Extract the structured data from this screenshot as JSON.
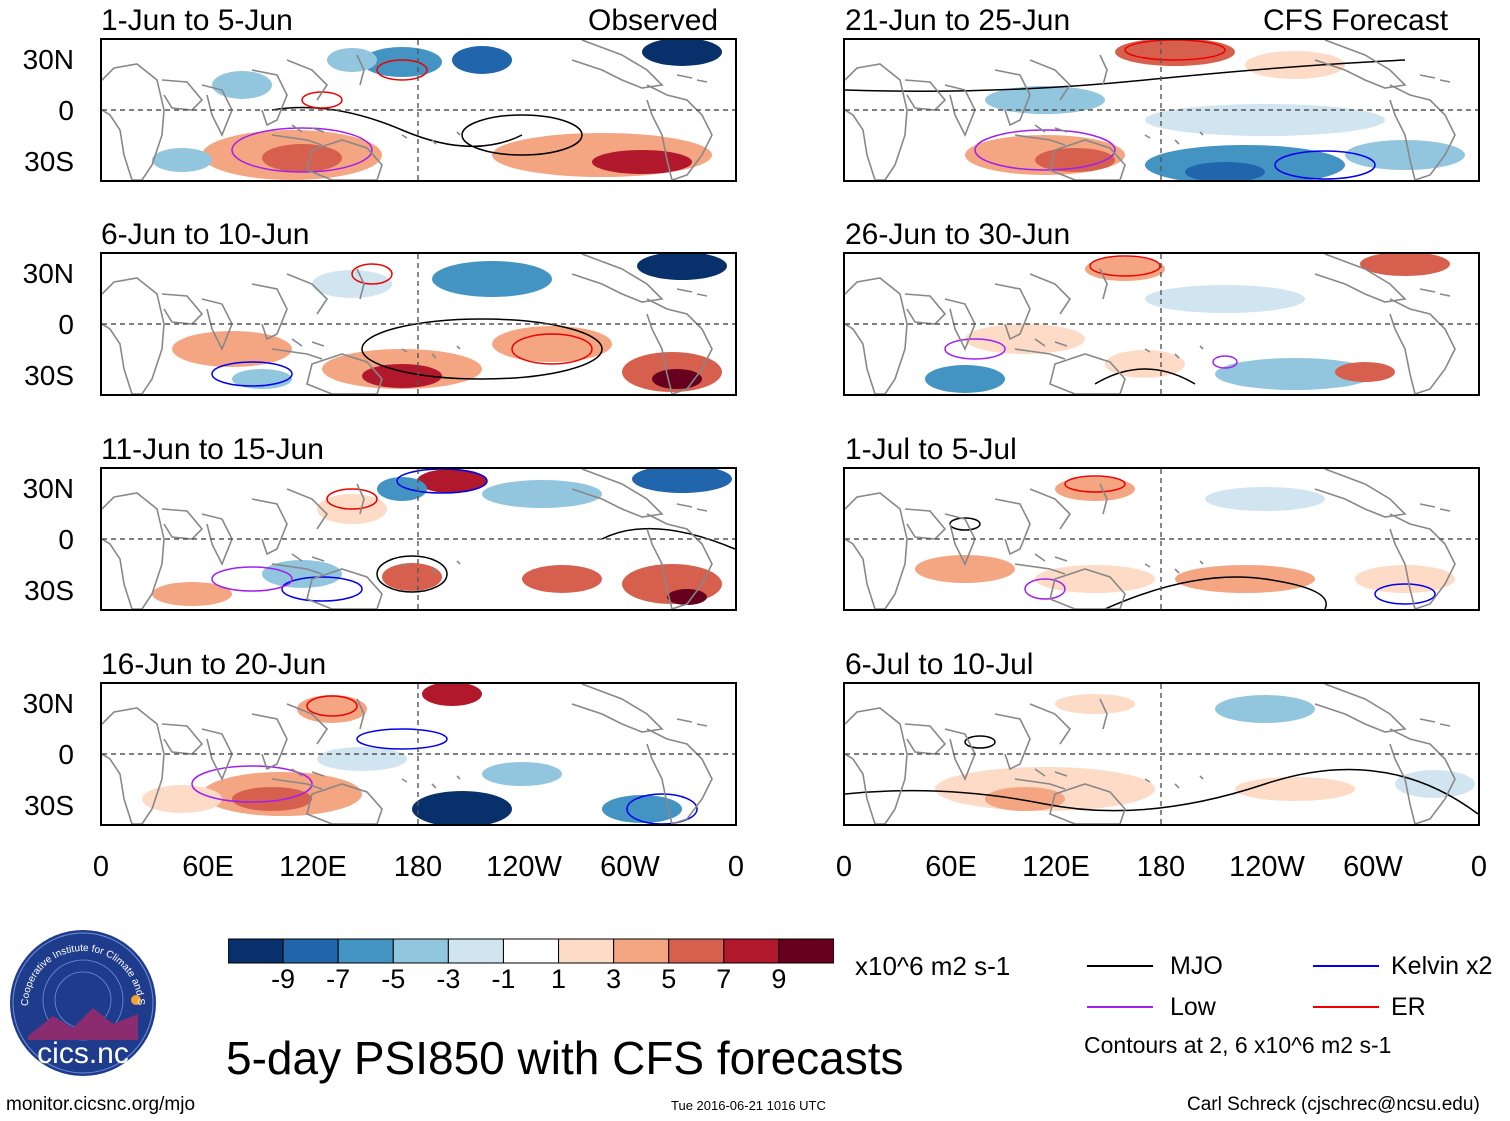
{
  "header": {
    "left_group_title": "Observed",
    "right_group_title": "CFS Forecast"
  },
  "panels_observed": [
    {
      "label": "1-Jun to 5-Jun"
    },
    {
      "label": "6-Jun to 10-Jun"
    },
    {
      "label": "11-Jun to 15-Jun"
    },
    {
      "label": "16-Jun to 20-Jun"
    }
  ],
  "panels_forecast": [
    {
      "label": "21-Jun to 25-Jun"
    },
    {
      "label": "26-Jun to 30-Jun"
    },
    {
      "label": "1-Jul to 5-Jul"
    },
    {
      "label": "6-Jul to 10-Jul"
    }
  ],
  "axes": {
    "y_ticks": [
      "30N",
      "0",
      "30S"
    ],
    "x_ticks": [
      "0",
      "60E",
      "120E",
      "180",
      "120W",
      "60W",
      "0"
    ]
  },
  "colorbar": {
    "ticks": [
      "-9",
      "-7",
      "-5",
      "-3",
      "-1",
      "1",
      "3",
      "5",
      "7",
      "9"
    ],
    "units": "x10^6 m2 s-1",
    "colors": [
      "#08306b",
      "#2166ac",
      "#4393c3",
      "#92c5de",
      "#d1e5f0",
      "#ffffff",
      "#fddbc7",
      "#f4a582",
      "#d6604d",
      "#b2182b",
      "#67001f"
    ]
  },
  "legend": {
    "items": [
      {
        "label": "MJO",
        "color": "#000000"
      },
      {
        "label": "Kelvin x2",
        "color": "#0000ee"
      },
      {
        "label": "Low",
        "color": "#a020f0"
      },
      {
        "label": "ER",
        "color": "#ee0000"
      }
    ],
    "contours_note": "Contours at 2, 6 x10^6 m2 s-1"
  },
  "main_title": "5-day PSI850 with CFS forecasts",
  "footer": {
    "url": "monitor.cicsnc.org/mjo",
    "timestamp": "Tue 2016-06-21 1016 UTC",
    "author": "Carl Schreck (cjschrec@ncsu.edu)"
  },
  "logo": {
    "ring_text": "Cooperative Institute for Climate and Satellites",
    "name": "cics.nc"
  }
}
